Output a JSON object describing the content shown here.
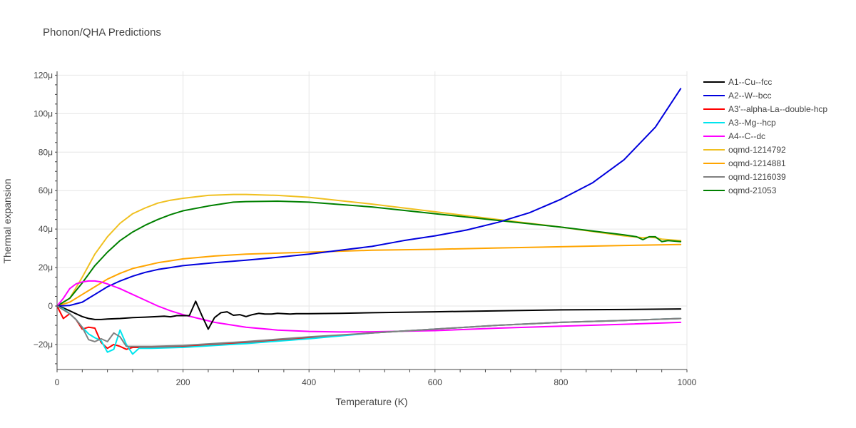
{
  "chart_data": {
    "type": "line",
    "title": "Phonon/QHA Predictions",
    "xlabel": "Temperature (K)",
    "ylabel": "Thermal expansion",
    "xlim": [
      0,
      1000
    ],
    "ylim": [
      -33,
      122
    ],
    "x_ticks": [
      0,
      200,
      400,
      600,
      800,
      1000
    ],
    "x_tick_labels": [
      "0",
      "200",
      "400",
      "600",
      "800",
      "1000"
    ],
    "y_ticks": [
      -20,
      0,
      20,
      40,
      60,
      80,
      100,
      120
    ],
    "y_tick_labels": [
      "−20μ",
      "0",
      "20μ",
      "40μ",
      "60μ",
      "80μ",
      "100μ",
      "120μ"
    ],
    "y_unit": "μ (×10⁻⁶)",
    "grid": true,
    "legend_position": "right",
    "series": [
      {
        "name": "oqmd-1214792",
        "color": "#f0c020",
        "x": [
          0,
          20,
          40,
          60,
          80,
          100,
          120,
          140,
          160,
          180,
          200,
          240,
          280,
          300,
          350,
          400,
          500,
          600,
          700,
          800,
          900,
          930,
          940,
          950,
          960,
          970,
          990
        ],
        "y": [
          0,
          4,
          15,
          27,
          36,
          43,
          48,
          51,
          53.5,
          55,
          56,
          57.5,
          58,
          58,
          57.5,
          56.5,
          53,
          49,
          45,
          41,
          36.5,
          35.5,
          35.8,
          35.5,
          34.8,
          34.5,
          34
        ]
      },
      {
        "name": "oqmd-1214881",
        "color": "#ffa500",
        "x": [
          0,
          20,
          40,
          60,
          80,
          100,
          120,
          140,
          160,
          180,
          200,
          250,
          300,
          400,
          500,
          600,
          700,
          800,
          900,
          990
        ],
        "y": [
          0,
          2,
          6,
          10,
          14,
          17,
          19.5,
          21,
          22.5,
          23.5,
          24.5,
          26,
          27,
          28,
          29,
          29.5,
          30.2,
          30.8,
          31.5,
          32
        ]
      },
      {
        "name": "oqmd-21053",
        "color": "#008000",
        "x": [
          0,
          20,
          40,
          60,
          80,
          100,
          120,
          140,
          160,
          180,
          200,
          240,
          280,
          300,
          350,
          400,
          500,
          600,
          700,
          800,
          900,
          920,
          930,
          940,
          950,
          960,
          970,
          990
        ],
        "y": [
          0,
          4,
          12,
          21,
          28,
          34,
          38.5,
          42,
          45,
          47.5,
          49.5,
          52,
          54,
          54.3,
          54.5,
          54,
          51.5,
          48,
          44.5,
          41,
          37,
          36,
          34.5,
          36,
          36,
          33.5,
          34,
          33.5
        ]
      },
      {
        "name": "A2--W--bcc",
        "color": "#0000dd",
        "x": [
          0,
          20,
          40,
          60,
          80,
          100,
          120,
          140,
          160,
          180,
          200,
          250,
          300,
          350,
          400,
          450,
          500,
          550,
          600,
          650,
          700,
          750,
          800,
          850,
          900,
          950,
          990
        ],
        "y": [
          0,
          0.3,
          2,
          6,
          10,
          13,
          15.5,
          17.5,
          19,
          20,
          21,
          22.5,
          23.8,
          25.3,
          27,
          29,
          31,
          34,
          36.5,
          39.5,
          43.5,
          48.5,
          55.5,
          64,
          76,
          93,
          113
        ]
      },
      {
        "name": "A4--C--dc",
        "color": "#ff00ff",
        "x": [
          0,
          10,
          20,
          30,
          40,
          50,
          60,
          70,
          80,
          100,
          120,
          140,
          160,
          180,
          200,
          250,
          300,
          350,
          400,
          450,
          500,
          600,
          700,
          800,
          900,
          990
        ],
        "y": [
          0,
          4,
          9,
          11.5,
          12.5,
          13,
          13,
          12.5,
          11.5,
          9,
          6,
          3,
          0,
          -2.5,
          -4.5,
          -8.5,
          -11,
          -12.5,
          -13.2,
          -13.5,
          -13.4,
          -12.8,
          -11.5,
          -10.5,
          -9.5,
          -8.5
        ]
      },
      {
        "name": "A1--Cu--fcc",
        "color": "#000000",
        "x": [
          0,
          10,
          20,
          30,
          40,
          50,
          60,
          70,
          80,
          100,
          120,
          140,
          160,
          170,
          180,
          190,
          200,
          210,
          220,
          230,
          240,
          250,
          260,
          270,
          280,
          290,
          300,
          310,
          320,
          330,
          340,
          350,
          360,
          370,
          380,
          400,
          450,
          500,
          600,
          700,
          800,
          900,
          990
        ],
        "y": [
          0,
          -1,
          -2.5,
          -4,
          -5.5,
          -6.5,
          -7,
          -7,
          -6.8,
          -6.5,
          -6,
          -5.8,
          -5.5,
          -5.3,
          -5.6,
          -5,
          -5,
          -5,
          2.5,
          -5,
          -12,
          -6,
          -3.5,
          -3,
          -4.8,
          -4.5,
          -5.5,
          -4.5,
          -3.8,
          -4.2,
          -4.2,
          -3.8,
          -4,
          -4.2,
          -4,
          -4,
          -3.8,
          -3.5,
          -3,
          -2.5,
          -2,
          -1.8,
          -1.5
        ]
      },
      {
        "name": "A3'--alpha-La--double-hcp",
        "color": "#ff0000",
        "x": [
          0,
          10,
          20,
          30,
          40,
          50,
          60,
          70,
          80,
          90,
          100,
          110,
          120,
          130,
          150,
          200,
          300,
          400,
          500,
          600,
          700,
          800,
          900,
          990
        ],
        "y": [
          0,
          -6.5,
          -4,
          -7,
          -12,
          -11,
          -11.5,
          -19,
          -22,
          -20,
          -21,
          -22.5,
          -21.5,
          -21.5,
          -21.5,
          -21,
          -19,
          -16.5,
          -14,
          -12,
          -10,
          -8.5,
          -7.5,
          -6.5
        ]
      },
      {
        "name": "A3--Mg--hcp",
        "color": "#00e5ee",
        "x": [
          0,
          10,
          20,
          30,
          40,
          50,
          60,
          70,
          80,
          90,
          100,
          110,
          120,
          130,
          150,
          200,
          300,
          400,
          500,
          600,
          700,
          800,
          900,
          990
        ],
        "y": [
          0,
          -1.5,
          -4,
          -7,
          -11,
          -14.5,
          -16.5,
          -18,
          -24,
          -22.5,
          -12.5,
          -20,
          -25,
          -22,
          -22,
          -21.5,
          -19.5,
          -17,
          -14,
          -12,
          -10,
          -8.5,
          -7.5,
          -6.5
        ]
      },
      {
        "name": "oqmd-1216039",
        "color": "#808080",
        "x": [
          0,
          10,
          20,
          30,
          40,
          50,
          60,
          70,
          80,
          90,
          100,
          110,
          120,
          130,
          150,
          200,
          300,
          400,
          500,
          600,
          700,
          800,
          900,
          990
        ],
        "y": [
          0,
          -2,
          -4,
          -7,
          -11,
          -17.5,
          -18.5,
          -17,
          -18.5,
          -14,
          -16,
          -21,
          -21,
          -21,
          -21,
          -20.5,
          -18.5,
          -16,
          -14,
          -12,
          -10,
          -8.5,
          -7.5,
          -6.5
        ]
      }
    ],
    "legend_order": [
      "A1--Cu--fcc",
      "A2--W--bcc",
      "A3'--alpha-La--double-hcp",
      "A3--Mg--hcp",
      "A4--C--dc",
      "oqmd-1214792",
      "oqmd-1214881",
      "oqmd-1216039",
      "oqmd-21053"
    ]
  }
}
